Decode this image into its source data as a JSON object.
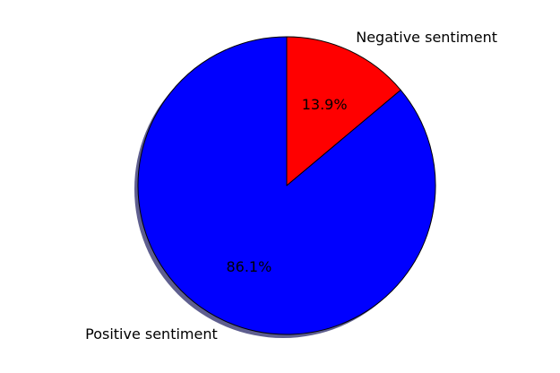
{
  "chart_data": {
    "type": "pie",
    "title": "",
    "slices": [
      {
        "label": "Negative sentiment",
        "value": 13.9,
        "pct_label": "13.9%",
        "color": "#ff0000"
      },
      {
        "label": "Positive sentiment",
        "value": 86.1,
        "pct_label": "86.1%",
        "color": "#0000ff"
      }
    ],
    "start_angle_deg": 90,
    "direction": "clockwise",
    "shadow": true,
    "shadow_color": "#5e5e8f",
    "edge_color": "#000000"
  }
}
